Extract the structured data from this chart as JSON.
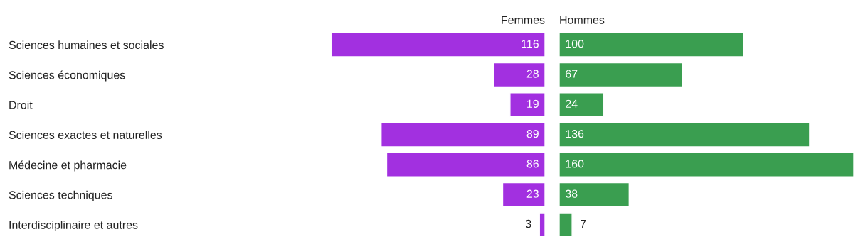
{
  "chart_data": [
    {
      "type": "bar",
      "orientation": "horizontal",
      "title": "Femmes",
      "categories": [
        "Sciences humaines et sociales",
        "Sciences économiques",
        "Droit",
        "Sciences exactes et naturelles",
        "Médecine et pharmacie",
        "Sciences techniques",
        "Interdisciplinaire et autres"
      ],
      "values": [
        116,
        28,
        19,
        89,
        86,
        23,
        3
      ],
      "color": "#a230e0",
      "data_labels": true
    },
    {
      "type": "bar",
      "orientation": "horizontal",
      "title": "Hommes",
      "categories": [
        null,
        null,
        null,
        null,
        null,
        null,
        null
      ],
      "values": [
        100,
        67,
        24,
        136,
        160,
        38,
        7
      ],
      "color": "#3a9e50",
      "data_labels": true
    }
  ]
}
